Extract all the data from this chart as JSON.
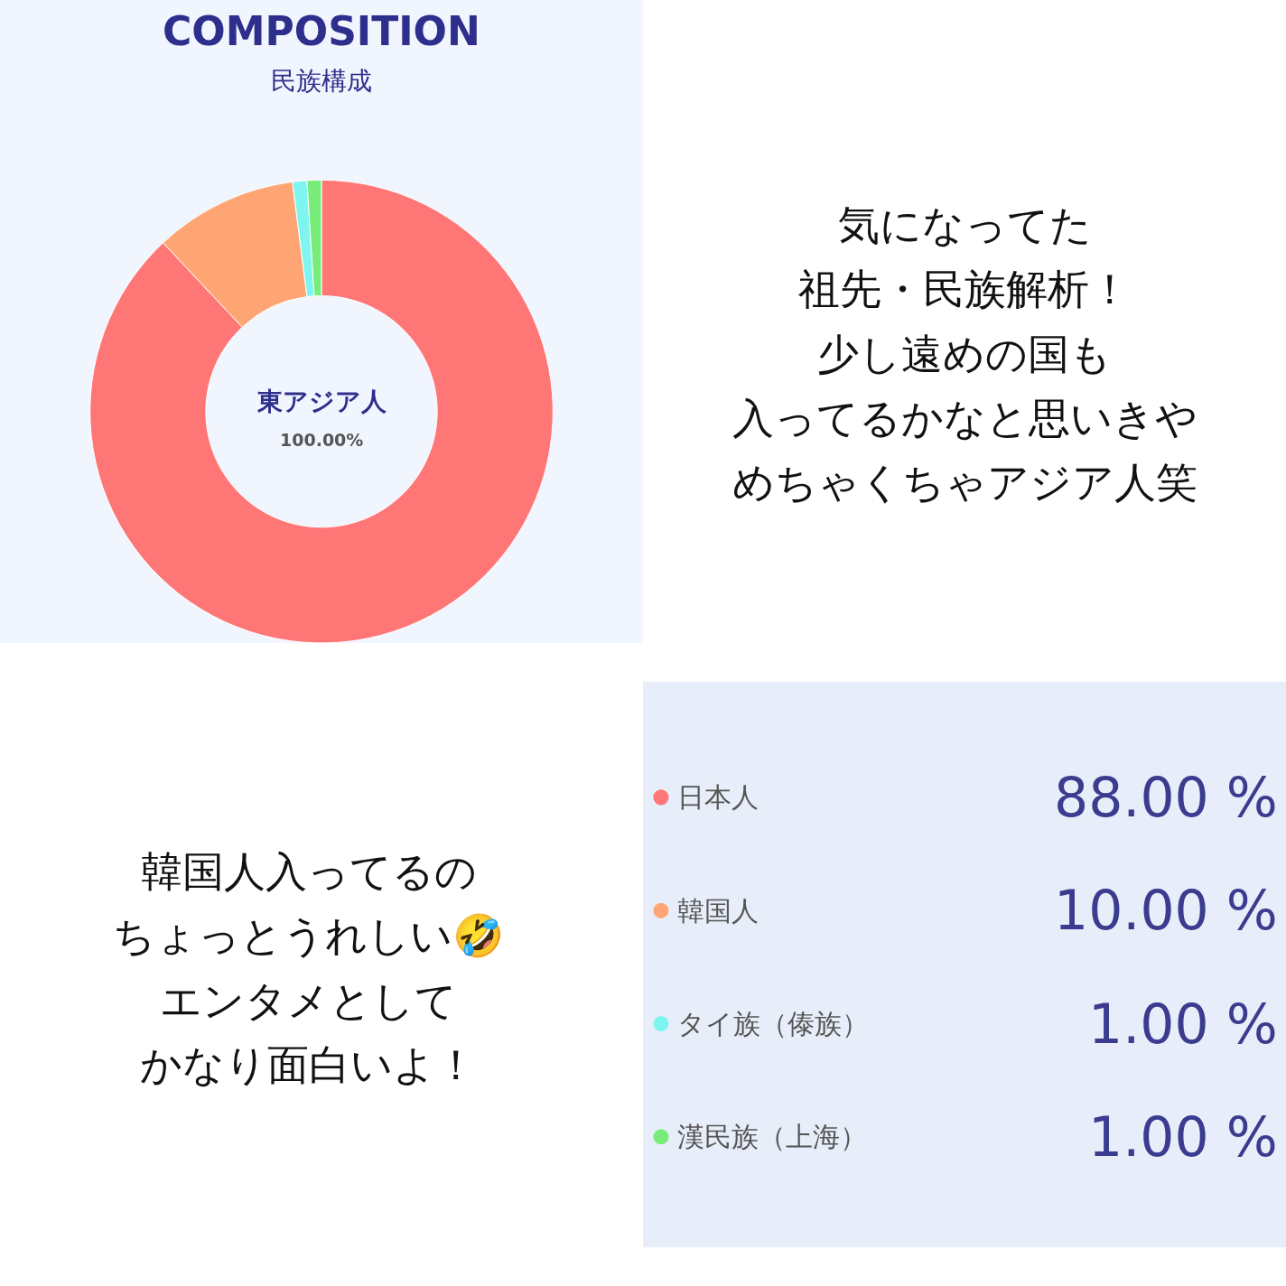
{
  "chart_data": {
    "type": "donut",
    "title": "COMPOSITION",
    "subtitle": "民族構成",
    "categories": [
      "日本人",
      "韓国人",
      "タイ族（傣族）",
      "漢民族（上海）"
    ],
    "values": [
      88,
      10,
      1,
      1
    ],
    "colors": [
      "#ff7676",
      "#ffa574",
      "#7ff5f0",
      "#78ec78"
    ],
    "value_labels": [
      "88.00 %",
      "10.00 %",
      "1.00 %",
      "1.00 %"
    ],
    "legend": "bottom right",
    "annotations": [
      "東アジア人",
      "100.00%",
      "気になってた",
      "祖先・民族解析！",
      "少し遠めの国も",
      "入ってるかなと思いきや",
      "めちゃくちゃアジア人笑",
      "韓国人入ってるの",
      "ちょっとうれしい🤣",
      "エンタメとして",
      "かなり面白いよ！"
    ]
  }
}
